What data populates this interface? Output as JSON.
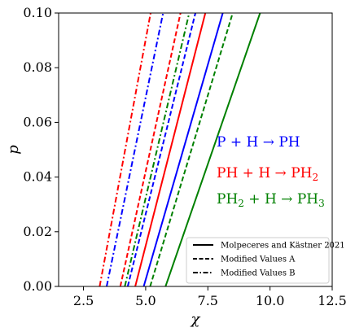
{
  "chart_data": {
    "type": "line",
    "xlabel": "χ",
    "ylabel": "p",
    "xlim": [
      1.5,
      12.5
    ],
    "ylim": [
      0.0,
      0.1
    ],
    "xticks": [
      "2.5",
      "5.0",
      "7.5",
      "10.0",
      "12.5"
    ],
    "yticks": [
      "0.00",
      "0.02",
      "0.04",
      "0.06",
      "0.08",
      "0.10"
    ],
    "xtick_values": [
      2.5,
      5.0,
      7.5,
      10.0,
      12.5
    ],
    "ytick_values": [
      0.0,
      0.02,
      0.04,
      0.06,
      0.08,
      0.1
    ],
    "grid": false,
    "legend_placement": "lower-right",
    "legend": [
      {
        "label": "Molpeceres and Kästner 2021",
        "style": "solid"
      },
      {
        "label": "Modified Values A",
        "style": "dashed"
      },
      {
        "label": "Modified Values B",
        "style": "dashdot"
      }
    ],
    "annotations": [
      {
        "id": "reaction-ph",
        "parts": [
          [
            "P + H → PH",
            ""
          ]
        ],
        "color": "#0000ff"
      },
      {
        "id": "reaction-ph2",
        "parts": [
          [
            "PH + H → PH",
            ""
          ],
          [
            "2",
            "sub"
          ]
        ],
        "color": "#ff0000"
      },
      {
        "id": "reaction-ph3",
        "parts": [
          [
            "PH",
            ""
          ],
          [
            "2",
            "sub"
          ],
          [
            " + H → PH",
            ""
          ],
          [
            "3",
            "sub"
          ]
        ],
        "color": "#008000"
      }
    ],
    "series": [
      {
        "reaction": "P + H → PH",
        "style": "solid",
        "color": "#0000ff",
        "x": [
          4.92,
          8.1
        ],
        "y": [
          0.0,
          0.1
        ]
      },
      {
        "reaction": "PH + H → PH2",
        "style": "solid",
        "color": "#ff0000",
        "x": [
          4.58,
          7.4
        ],
        "y": [
          0.0,
          0.1
        ]
      },
      {
        "reaction": "PH2 + H → PH3",
        "style": "solid",
        "color": "#008000",
        "x": [
          5.8,
          9.6
        ],
        "y": [
          0.0,
          0.1
        ]
      },
      {
        "reaction": "P + H → PH",
        "style": "dashed",
        "color": "#0000ff",
        "x": [
          4.28,
          7.0
        ],
        "y": [
          0.0,
          0.1
        ]
      },
      {
        "reaction": "PH + H → PH2",
        "style": "dashed",
        "color": "#ff0000",
        "x": [
          3.98,
          6.4
        ],
        "y": [
          0.0,
          0.1
        ]
      },
      {
        "reaction": "PH2 + H → PH3",
        "style": "dashed",
        "color": "#008000",
        "x": [
          5.18,
          8.5
        ],
        "y": [
          0.0,
          0.1
        ]
      },
      {
        "reaction": "P + H → PH",
        "style": "dashdot",
        "color": "#0000ff",
        "x": [
          3.43,
          5.7
        ],
        "y": [
          0.0,
          0.1
        ]
      },
      {
        "reaction": "PH + H → PH2",
        "style": "dashdot",
        "color": "#ff0000",
        "x": [
          3.15,
          5.2
        ],
        "y": [
          0.0,
          0.1
        ]
      },
      {
        "reaction": "PH2 + H → PH3",
        "style": "dashdot",
        "color": "#008000",
        "x": [
          4.16,
          6.75
        ],
        "y": [
          0.0,
          0.1
        ]
      }
    ]
  }
}
